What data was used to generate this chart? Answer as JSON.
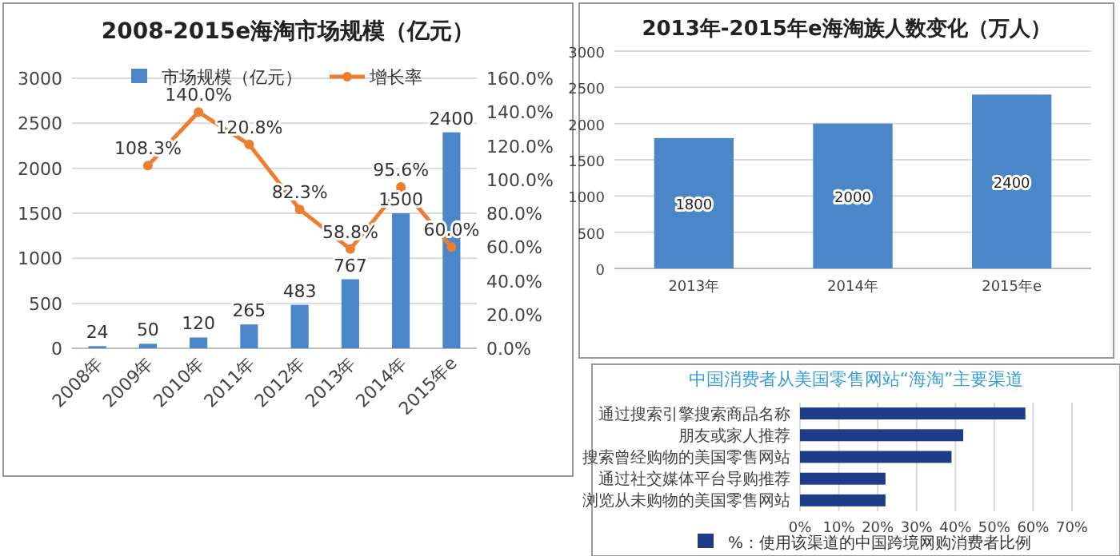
{
  "chart_data": [
    {
      "type": "bar",
      "title": "2008-2015e海淘市场规模（亿元）",
      "categories": [
        "2008年",
        "2009年",
        "2010年",
        "2011年",
        "2012年",
        "2013年",
        "2014年",
        "2015年e"
      ],
      "series": [
        {
          "name": "市场规模（亿元）",
          "color": "#4a86c8",
          "values": [
            24,
            50,
            120,
            265,
            483,
            767,
            1500,
            2400
          ],
          "value_labels": [
            "24",
            "50",
            "120",
            "265",
            "483",
            "767",
            "1500",
            "2400"
          ]
        },
        {
          "name": "增长率",
          "type": "line",
          "axis": "y2",
          "color": "#ed7d31",
          "values": [
            null,
            108.3,
            140.0,
            120.8,
            82.3,
            58.8,
            95.6,
            60.0
          ],
          "value_labels": [
            null,
            "108.3%",
            "140.0%",
            "120.8%",
            "82.3%",
            "58.8%",
            "95.6%",
            "60.0%"
          ]
        }
      ],
      "ylim": [
        0,
        3000
      ],
      "yticks": [
        0,
        500,
        1000,
        1500,
        2000,
        2500,
        3000
      ],
      "y2lim": [
        0,
        160
      ],
      "y2ticks": [
        {
          "value": 0,
          "label": "0.0%"
        },
        {
          "value": 20,
          "label": "20.0%"
        },
        {
          "value": 40,
          "label": "40.0%"
        },
        {
          "value": 60,
          "label": "60.0%"
        },
        {
          "value": 80,
          "label": "80.0%"
        },
        {
          "value": 100,
          "label": "100.0%"
        },
        {
          "value": 120,
          "label": "120.0%"
        },
        {
          "value": 140,
          "label": "140.0%"
        },
        {
          "value": 160,
          "label": "160.0%"
        }
      ],
      "grid": "y",
      "legend": "top",
      "marker": "circle"
    },
    {
      "type": "bar",
      "title": "2013年-2015年e海淘族人数变化（万人）",
      "categories": [
        "2013年",
        "2014年",
        "2015年e"
      ],
      "values": [
        1800,
        2000,
        2400
      ],
      "color": "#4a86c8",
      "ylim": [
        0,
        3000
      ],
      "yticks": [
        0,
        500,
        1000,
        1500,
        2000,
        2500,
        3000
      ],
      "grid": "y",
      "data_labels": true
    },
    {
      "type": "bar",
      "orientation": "horizontal",
      "title": "中国消费者从美国零售网站“海淘”主要渠道",
      "categories": [
        "通过搜索引擎搜索商品名称",
        "朋友或家人推荐",
        "搜索曾经购物的美国零售网站",
        "通过社交媒体平台导购推荐",
        "浏览从未购物的美国零售网站"
      ],
      "series": [
        {
          "name": "%：使用该渠道的中国跨境网购消费者比例",
          "color": "#1f3c88",
          "values": [
            58,
            42,
            39,
            22,
            22
          ]
        }
      ],
      "xlim": [
        0,
        70
      ],
      "xticks": [
        {
          "value": 0,
          "label": "0%"
        },
        {
          "value": 10,
          "label": "10%"
        },
        {
          "value": 20,
          "label": "20%"
        },
        {
          "value": 30,
          "label": "30%"
        },
        {
          "value": 40,
          "label": "40%"
        },
        {
          "value": 50,
          "label": "50%"
        },
        {
          "value": 60,
          "label": "60%"
        },
        {
          "value": 70,
          "label": "70%"
        }
      ],
      "grid": "x",
      "legend": "bottom"
    }
  ]
}
